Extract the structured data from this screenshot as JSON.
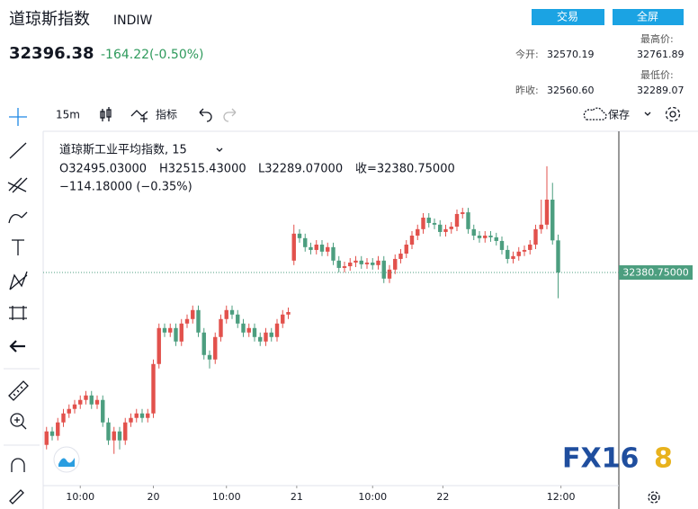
{
  "header": {
    "title": "道琼斯指数",
    "symbol": "INDIW",
    "buttons": [
      "交易",
      "全屏"
    ],
    "price": "32396.38",
    "change": "-164.22(-0.50%)",
    "stats": [
      {
        "label": "今开:",
        "value": "32570.19"
      },
      {
        "label": "最高价:",
        "value": "32761.89"
      },
      {
        "label": "昨收:",
        "value": "32560.60"
      },
      {
        "label": "最低价:",
        "value": "32289.07"
      }
    ]
  },
  "toolbar": {
    "interval": "15m",
    "indicators": "指标",
    "save": "保存"
  },
  "chart_data": {
    "type": "candlestick",
    "legend": {
      "title": "道琼斯工业平均指数, 15",
      "ohlc": [
        "O32495.03000",
        "H32515.43000",
        "L32289.07000",
        "收=32380.75000"
      ],
      "change": "−114.18000 (−0.35%)"
    },
    "up_color": "#e2514c",
    "down_color": "#4c9e7f",
    "x": [
      0,
      1,
      2,
      3,
      4,
      5,
      6,
      7,
      8,
      9,
      10,
      11,
      12,
      13,
      14,
      15,
      16,
      17,
      18,
      19,
      20,
      21,
      22,
      23,
      24,
      25,
      26,
      27,
      28,
      29,
      30,
      31,
      32,
      33,
      34,
      35,
      36,
      37,
      38,
      39,
      40,
      41,
      42,
      43,
      44,
      45,
      46,
      47,
      48,
      49,
      50,
      51,
      52,
      53,
      54,
      55,
      56,
      57,
      58,
      59,
      60,
      61,
      62,
      63,
      64,
      65,
      66,
      67,
      68,
      69,
      70,
      71,
      72,
      73,
      74,
      75,
      76,
      77,
      78,
      79,
      80,
      81,
      82,
      83,
      84,
      85,
      86,
      87,
      88,
      89,
      90,
      91
    ],
    "open": [
      31767,
      31815,
      31799,
      31847,
      31879,
      31895,
      31911,
      31927,
      31943,
      31911,
      31927,
      31847,
      31783,
      31815,
      31783,
      31847,
      31863,
      31879,
      31863,
      31879,
      32055,
      32183,
      32167,
      32183,
      32135,
      32199,
      32215,
      32247,
      32167,
      32087,
      32071,
      32151,
      32215,
      32247,
      32231,
      32199,
      32167,
      32183,
      32151,
      32135,
      32167,
      32151,
      32199,
      32231,
      32423,
      32519,
      32503,
      32471,
      32461,
      32480,
      32455,
      32471,
      32423,
      32397,
      32403,
      32416,
      32423,
      32410,
      32416,
      32407,
      32423,
      32359,
      32391,
      32429,
      32448,
      32480,
      32512,
      32535,
      32576,
      32557,
      32551,
      32525,
      32535,
      32544,
      32589,
      32595,
      32535,
      32512,
      32503,
      32512,
      32506,
      32493,
      32461,
      32429,
      32439,
      32455,
      32461,
      32480,
      32535,
      32551,
      32640,
      32495.03
    ],
    "high": [
      31831,
      31831,
      31863,
      31895,
      31911,
      31927,
      31943,
      31959,
      31959,
      31943,
      31943,
      31863,
      31831,
      31831,
      31863,
      31879,
      31895,
      31895,
      31895,
      32071,
      32199,
      32199,
      32199,
      32199,
      32215,
      32231,
      32263,
      32263,
      32183,
      32103,
      32167,
      32231,
      32263,
      32263,
      32247,
      32215,
      32199,
      32199,
      32167,
      32183,
      32183,
      32215,
      32247,
      32256,
      32551,
      32535,
      32519,
      32487,
      32496,
      32496,
      32487,
      32487,
      32439,
      32419,
      32432,
      32439,
      32439,
      32432,
      32432,
      32439,
      32439,
      32407,
      32445,
      32464,
      32496,
      32528,
      32551,
      32592,
      32592,
      32573,
      32567,
      32551,
      32560,
      32605,
      32611,
      32611,
      32551,
      32528,
      32528,
      32528,
      32522,
      32509,
      32477,
      32455,
      32471,
      32477,
      32496,
      32551,
      32640,
      32759,
      32700,
      32515.43
    ],
    "low": [
      31751,
      31783,
      31783,
      31831,
      31863,
      31879,
      31895,
      31911,
      31895,
      31895,
      31831,
      31767,
      31735,
      31751,
      31767,
      31831,
      31847,
      31847,
      31847,
      31863,
      32039,
      32151,
      32151,
      32119,
      32119,
      32183,
      32199,
      32151,
      32071,
      32039,
      32055,
      32135,
      32199,
      32215,
      32183,
      32151,
      32151,
      32135,
      32119,
      32119,
      32135,
      32135,
      32183,
      32215,
      32407,
      32487,
      32455,
      32445,
      32445,
      32439,
      32439,
      32407,
      32381,
      32381,
      32387,
      32400,
      32394,
      32394,
      32391,
      32391,
      32343,
      32343,
      32375,
      32413,
      32432,
      32464,
      32496,
      32519,
      32541,
      32535,
      32509,
      32509,
      32519,
      32528,
      32573,
      32519,
      32496,
      32487,
      32487,
      32490,
      32477,
      32445,
      32413,
      32413,
      32423,
      32439,
      32445,
      32464,
      32519,
      32535,
      32480,
      32289.07
    ],
    "close": [
      31815,
      31799,
      31847,
      31879,
      31895,
      31911,
      31927,
      31943,
      31911,
      31927,
      31847,
      31783,
      31815,
      31783,
      31847,
      31863,
      31879,
      31863,
      31879,
      32055,
      32183,
      32167,
      32183,
      32135,
      32199,
      32215,
      32247,
      32167,
      32087,
      32071,
      32151,
      32215,
      32247,
      32231,
      32199,
      32167,
      32183,
      32151,
      32135,
      32167,
      32151,
      32199,
      32231,
      32240,
      32519,
      32503,
      32471,
      32461,
      32480,
      32455,
      32471,
      32423,
      32397,
      32403,
      32416,
      32423,
      32410,
      32416,
      32407,
      32423,
      32359,
      32391,
      32429,
      32448,
      32480,
      32512,
      32535,
      32576,
      32557,
      32551,
      32525,
      32535,
      32544,
      32589,
      32595,
      32535,
      32512,
      32503,
      32512,
      32506,
      32493,
      32461,
      32429,
      32439,
      32455,
      32461,
      32480,
      32535,
      32551,
      32640,
      32495,
      32380.75
    ],
    "xlim": [
      -0.6,
      101.8
    ],
    "ylim": [
      31622,
      32877
    ],
    "xticks": [
      {
        "value": 6,
        "label": "10:00"
      },
      {
        "value": 19,
        "label": "20"
      },
      {
        "value": 32,
        "label": "10:00"
      },
      {
        "value": 44.5,
        "label": "21"
      },
      {
        "value": 58,
        "label": "10:00"
      },
      {
        "value": 70.5,
        "label": "22"
      },
      {
        "value": 91.5,
        "label": "12:00"
      }
    ],
    "last_price": {
      "value": 32380.75,
      "label": "32380.75000"
    }
  },
  "watermark": [
    "FX16",
    "8"
  ]
}
